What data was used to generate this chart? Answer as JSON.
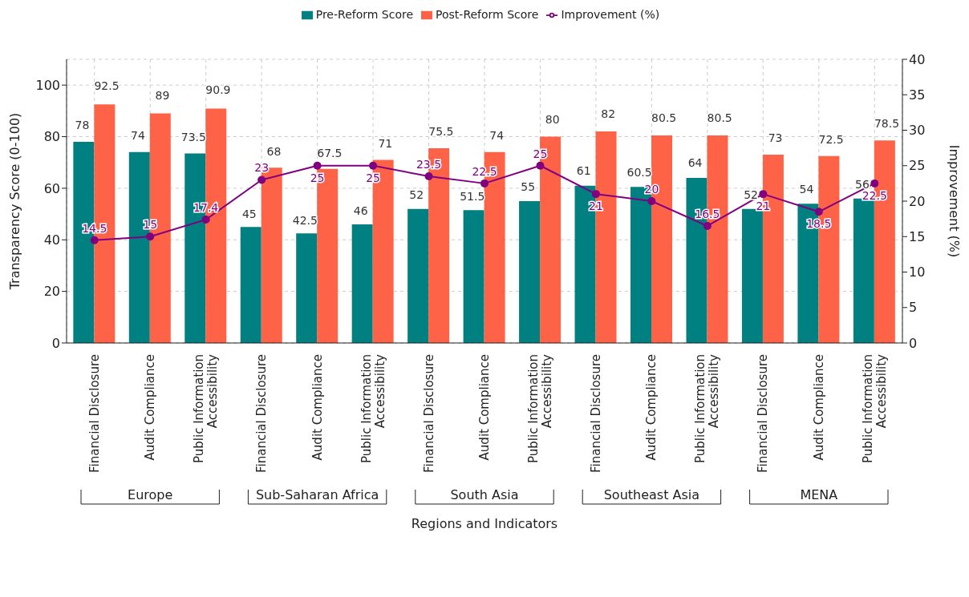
{
  "chart_data": {
    "type": "bar",
    "xlabel": "Regions and Indicators",
    "ylabel": "Transparency Score (0-100)",
    "y2label": "Improvement (%)",
    "categories": [
      "Financial Disclosure",
      "Audit Compliance",
      "Public Information Accessibility",
      "Financial Disclosure",
      "Audit Compliance",
      "Public Information Accessibility",
      "Financial Disclosure",
      "Audit Compliance",
      "Public Information Accessibility",
      "Financial Disclosure",
      "Audit Compliance",
      "Public Information Accessibility",
      "Financial Disclosure",
      "Audit Compliance",
      "Public Information Accessibility"
    ],
    "series": [
      {
        "name": "Pre-Reform Score",
        "color": "#008080",
        "values": [
          78,
          74,
          73.5,
          45,
          42.5,
          46,
          52,
          51.5,
          55,
          61,
          60.5,
          64,
          52,
          54,
          56
        ]
      },
      {
        "name": "Post-Reform Score",
        "color": "#ff6347",
        "values": [
          92.5,
          89,
          90.9,
          68,
          67.5,
          71,
          75.5,
          74,
          80,
          82,
          80.5,
          80.5,
          73,
          72.5,
          78.5
        ]
      },
      {
        "name": "Improvement (%)",
        "type": "line",
        "axis": "y2",
        "color": "#800080",
        "values": [
          14.5,
          15,
          17.4,
          23,
          25,
          25,
          23.5,
          22.5,
          25,
          21,
          20,
          16.5,
          21,
          18.5,
          22.5
        ]
      }
    ],
    "annotations": [
      "Europe",
      "Sub-Saharan Africa",
      "South Asia",
      "Southeast Asia",
      "MENA"
    ],
    "ylim": [
      0,
      110
    ],
    "yticks": [
      0,
      20,
      40,
      60,
      80,
      100
    ],
    "y2lim": [
      0,
      40
    ],
    "y2ticks": [
      0,
      5,
      10,
      15,
      20,
      25,
      30,
      35,
      40
    ],
    "grid": true,
    "legend": "top",
    "marker": "circle",
    "data_labels": true
  }
}
